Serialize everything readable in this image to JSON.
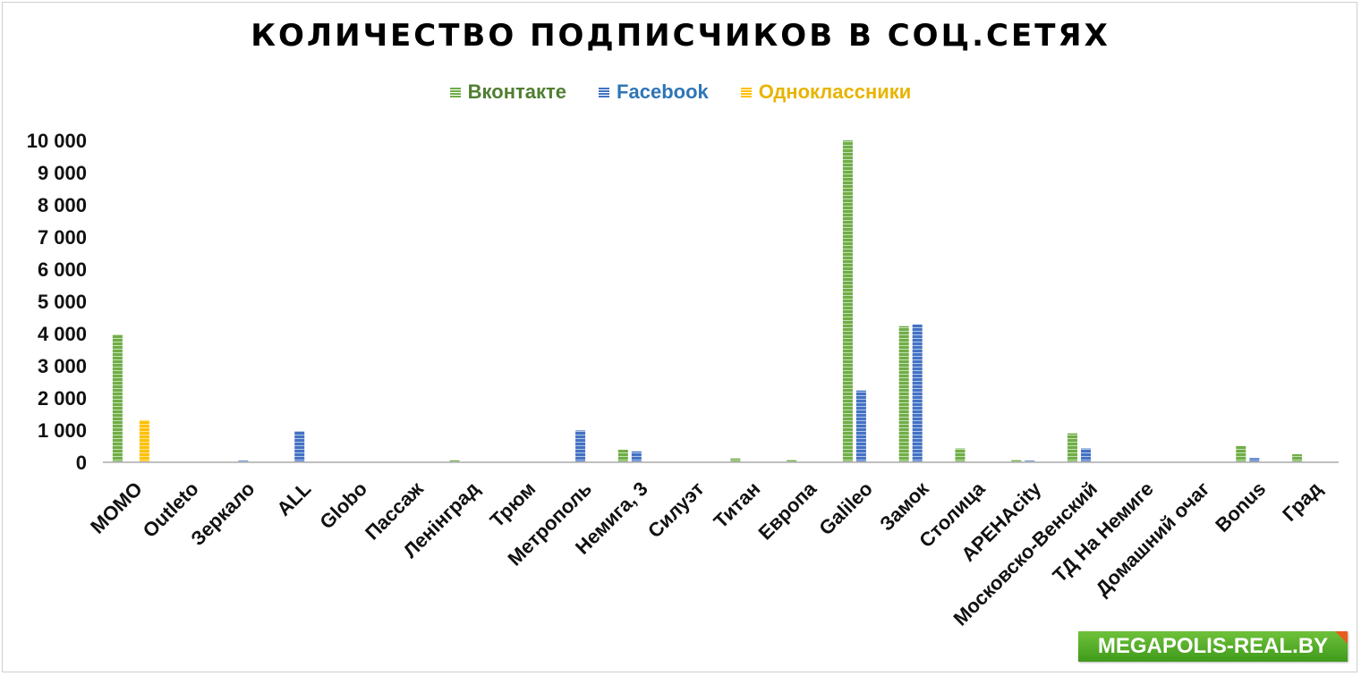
{
  "chart_data": {
    "type": "bar",
    "title": "КОЛИЧЕСТВО ПОДПИСЧИКОВ В СОЦ.СЕТЯХ",
    "categories": [
      "MOMO",
      "Outleto",
      "Зеркало",
      "ALL",
      "Globo",
      "Пассаж",
      "Ленiнград",
      "Трюм",
      "Метрополь",
      "Немига, 3",
      "Силуэт",
      "Титан",
      "Европа",
      "Galileo",
      "Замок",
      "Столица",
      "АРЕНАcity",
      "Московско-Венский",
      "ТД На Немиге",
      "Домашний очаг",
      "Bonus",
      "Град"
    ],
    "series": [
      {
        "name": "Вконтакте",
        "color": "#70ad47",
        "values": [
          3970,
          0,
          0,
          0,
          0,
          0,
          70,
          0,
          0,
          390,
          0,
          120,
          80,
          10000,
          4230,
          430,
          80,
          900,
          0,
          0,
          510,
          250
        ]
      },
      {
        "name": "Facebook",
        "color": "#4472c4",
        "values": [
          0,
          0,
          50,
          970,
          0,
          0,
          0,
          0,
          990,
          340,
          0,
          0,
          0,
          2230,
          4280,
          0,
          50,
          430,
          0,
          0,
          130,
          0
        ]
      },
      {
        "name": "Одноклассники",
        "color": "#ffc000",
        "values": [
          1310,
          0,
          0,
          0,
          0,
          0,
          0,
          0,
          0,
          0,
          0,
          0,
          0,
          0,
          0,
          0,
          0,
          0,
          0,
          0,
          0,
          0
        ]
      }
    ],
    "yticks": [
      "0",
      "1 000",
      "2 000",
      "3 000",
      "4 000",
      "5 000",
      "6 000",
      "7 000",
      "8 000",
      "9 000",
      "10 000"
    ],
    "ylim": [
      0,
      10000
    ],
    "legend_position": "top",
    "grid": false
  },
  "watermark": "MEGAPOLIS-REAL.BY"
}
